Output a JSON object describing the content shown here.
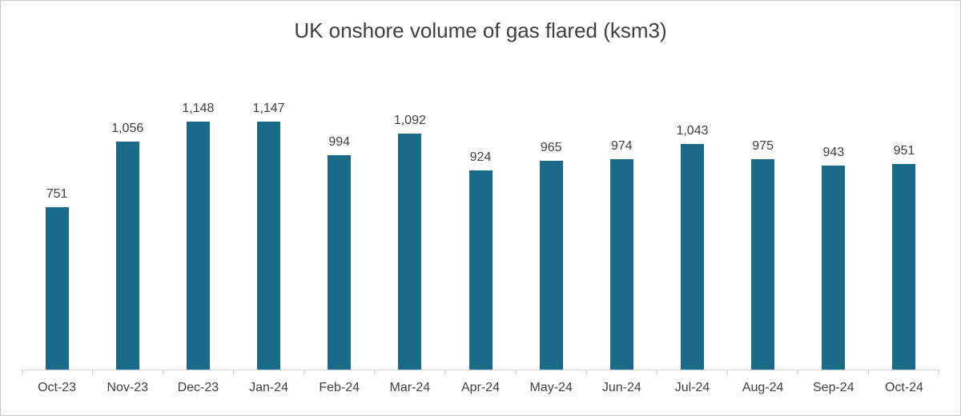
{
  "chart_data": {
    "type": "bar",
    "title": "UK onshore volume of gas flared (ksm3)",
    "categories": [
      "Oct-23",
      "Nov-23",
      "Dec-23",
      "Jan-24",
      "Feb-24",
      "Mar-24",
      "Apr-24",
      "May-24",
      "Jun-24",
      "Jul-24",
      "Aug-24",
      "Sep-24",
      "Oct-24"
    ],
    "values": [
      751,
      1056,
      1148,
      1147,
      994,
      1092,
      924,
      965,
      974,
      1043,
      975,
      943,
      951
    ],
    "value_labels": [
      "751",
      "1,056",
      "1,148",
      "1,147",
      "994",
      "1,092",
      "924",
      "965",
      "974",
      "1,043",
      "975",
      "943",
      "951"
    ],
    "xlabel": "",
    "ylabel": "",
    "ylim": [
      0,
      1200
    ],
    "grid": false,
    "legend": false,
    "bar_color": "#1a6a89",
    "axis_color": "#d6d6d6",
    "text_color": "#404040"
  }
}
